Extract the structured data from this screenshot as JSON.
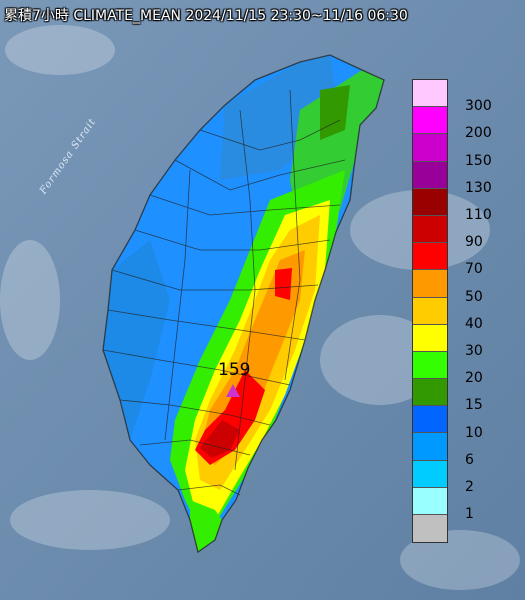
{
  "title": "累積7小時 CLIMATE_MEAN 2024/11/15 23:30~11/16 06:30",
  "strait_label": "Formosa Strait",
  "max_value": "159",
  "legend": {
    "items": [
      {
        "label": "300",
        "color": "#ffc8ff"
      },
      {
        "label": "200",
        "color": "#ff00ff"
      },
      {
        "label": "150",
        "color": "#cc00cc"
      },
      {
        "label": "130",
        "color": "#990099"
      },
      {
        "label": "110",
        "color": "#990000"
      },
      {
        "label": "90",
        "color": "#cc0000"
      },
      {
        "label": "70",
        "color": "#ff0000"
      },
      {
        "label": "50",
        "color": "#ff9900"
      },
      {
        "label": "40",
        "color": "#ffcc00"
      },
      {
        "label": "30",
        "color": "#ffff00"
      },
      {
        "label": "20",
        "color": "#33ff00"
      },
      {
        "label": "15",
        "color": "#339900"
      },
      {
        "label": "10",
        "color": "#0066ff"
      },
      {
        "label": "6",
        "color": "#0099ff"
      },
      {
        "label": "2",
        "color": "#00ccff"
      },
      {
        "label": "1",
        "color": "#99ffff"
      },
      {
        "label": "",
        "color": "#c0c0c0"
      }
    ]
  }
}
